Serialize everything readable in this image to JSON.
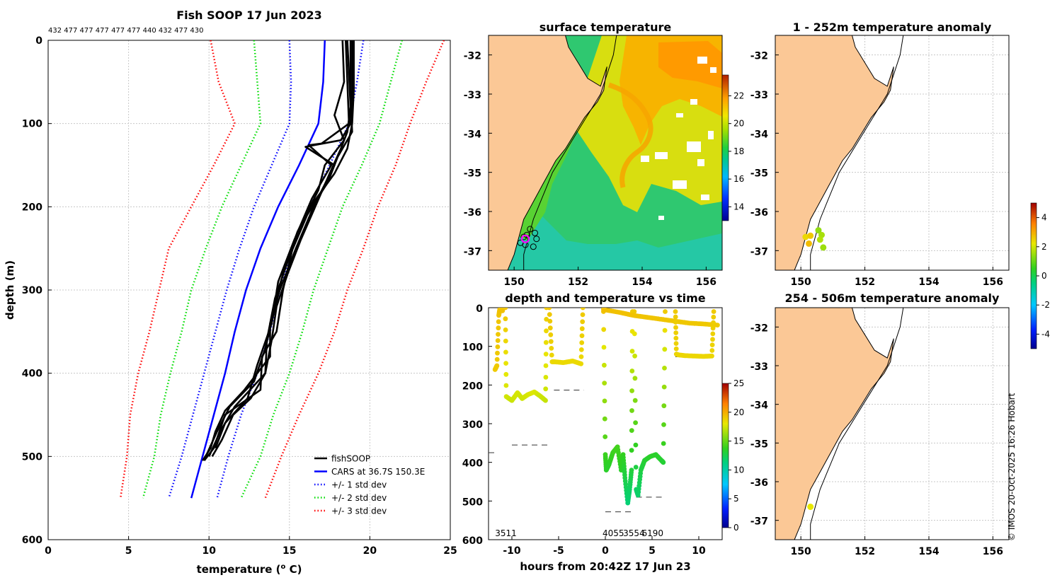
{
  "chart_data": [
    {
      "type": "line",
      "id": "profile",
      "title": "Fish SOOP 17 Jun 2023",
      "drop_ids": "432 477 477 477 477 477 440 432 477 430",
      "xlabel": "temperature (",
      "xlabel_sup": "o",
      "xlabel_tail": " C)",
      "ylabel": "depth (m)",
      "xlim": [
        0,
        25
      ],
      "ylim": [
        600,
        0
      ],
      "xticks": [
        "0",
        "5",
        "10",
        "15",
        "20",
        "25"
      ],
      "yticks": [
        "0",
        "100",
        "200",
        "300",
        "400",
        "500",
        "600"
      ],
      "colors": {
        "fishsoop": "#000000",
        "cars": "#0000ff",
        "std1": "#0000ff",
        "std2": "#00dd00",
        "std3": "#ff0000"
      },
      "legend": [
        {
          "label": "fishSOOP",
          "color": "#000000",
          "style": "solid"
        },
        {
          "label": "CARS at 36.7S 150.3E",
          "color": "#0000ff",
          "style": "solid"
        },
        {
          "label": "+/- 1 std dev",
          "color": "#0000ff",
          "style": "dotted"
        },
        {
          "label": "+/- 2 std dev",
          "color": "#00dd00",
          "style": "dotted"
        },
        {
          "label": "+/- 3 std dev",
          "color": "#ff0000",
          "style": "dotted"
        }
      ],
      "legend_position": "bottom-right",
      "cars_mean": {
        "depth": [
          0,
          50,
          100,
          150,
          200,
          250,
          300,
          350,
          400,
          450,
          500,
          550
        ],
        "temp": [
          17.2,
          17.1,
          16.8,
          15.6,
          14.3,
          13.2,
          12.3,
          11.6,
          11.0,
          10.3,
          9.6,
          8.9
        ]
      },
      "std": [
        {
          "name": "+/-1",
          "lower": [
            15.0,
            15.1,
            15.0,
            13.9,
            12.8,
            11.9,
            11.1,
            10.4,
            9.7,
            9.0,
            8.3,
            7.5
          ],
          "upper": [
            19.6,
            19.2,
            18.7,
            17.5,
            16.2,
            15.2,
            14.4,
            13.8,
            13.0,
            12.0,
            11.2,
            10.5
          ]
        },
        {
          "name": "+/-2",
          "lower": [
            12.8,
            13.0,
            13.2,
            12.0,
            10.8,
            9.8,
            8.9,
            8.3,
            7.6,
            7.0,
            6.6,
            5.9
          ],
          "upper": [
            22.0,
            21.3,
            20.6,
            19.5,
            18.3,
            17.4,
            16.5,
            15.8,
            15.0,
            14.0,
            13.2,
            12.0
          ]
        },
        {
          "name": "+/-3",
          "lower": [
            10.1,
            10.6,
            11.6,
            10.3,
            8.9,
            7.5,
            6.9,
            6.3,
            5.6,
            5.1,
            4.9,
            4.5
          ],
          "upper": [
            24.6,
            23.5,
            22.5,
            21.6,
            20.5,
            19.6,
            18.6,
            17.8,
            16.8,
            15.6,
            14.5,
            13.5
          ]
        }
      ],
      "profiles": [
        {
          "depth": [
            0,
            60,
            100,
            120,
            126,
            128,
            150,
            200,
            250,
            300,
            340,
            380,
            420,
            445,
            470,
            490,
            505
          ],
          "temp": [
            18.9,
            18.9,
            18.8,
            18.2,
            16.5,
            16.0,
            17.8,
            16.5,
            15.4,
            14.4,
            13.8,
            13.8,
            12.2,
            11.0,
            10.4,
            10.1,
            9.6
          ]
        },
        {
          "depth": [
            0,
            40,
            80,
            110,
            130,
            160,
            200,
            240,
            280,
            320,
            360,
            400,
            430,
            450,
            480,
            500
          ],
          "temp": [
            18.6,
            18.7,
            18.8,
            18.6,
            18.2,
            17.5,
            16.6,
            15.7,
            14.9,
            14.2,
            13.9,
            13.5,
            12.6,
            11.5,
            10.8,
            10.2
          ]
        },
        {
          "depth": [
            0,
            50,
            90,
            120,
            150,
            180,
            230,
            280,
            330,
            370,
            410,
            440,
            470,
            500
          ],
          "temp": [
            18.3,
            18.4,
            17.8,
            18.4,
            17.2,
            16.8,
            15.5,
            14.6,
            14.0,
            13.5,
            12.8,
            11.3,
            10.5,
            9.8
          ]
        },
        {
          "depth": [
            0,
            60,
            100,
            130,
            160,
            200,
            250,
            300,
            350,
            380,
            420,
            450,
            490,
            505
          ],
          "temp": [
            19.0,
            19.0,
            18.9,
            18.6,
            17.8,
            16.3,
            15.2,
            14.6,
            14.2,
            13.3,
            13.2,
            11.0,
            10.3,
            9.7
          ]
        },
        {
          "depth": [
            0,
            70,
            110,
            140,
            170,
            210,
            260,
            310,
            360,
            400,
            440,
            470,
            500
          ],
          "temp": [
            18.8,
            18.8,
            18.9,
            18.0,
            17.4,
            16.1,
            15.0,
            14.1,
            13.6,
            13.5,
            11.6,
            10.7,
            10.0
          ]
        },
        {
          "depth": [
            0,
            50,
            100,
            124,
            126,
            150,
            190,
            240,
            290,
            340,
            390,
            430,
            460,
            490
          ],
          "temp": [
            18.5,
            18.6,
            18.7,
            17.0,
            16.2,
            17.6,
            16.4,
            15.3,
            14.3,
            13.9,
            13.0,
            12.4,
            11.0,
            10.4
          ]
        }
      ]
    },
    {
      "type": "heatmap",
      "id": "sst_map",
      "title": "surface temperature",
      "xlim": [
        149.2,
        156.5
      ],
      "ylim": [
        -37.5,
        -31.5
      ],
      "xticks": [
        "150",
        "152",
        "154",
        "156"
      ],
      "yticks": [
        "-32",
        "-33",
        "-34",
        "-35",
        "-36",
        "-37"
      ],
      "colorbar_ticks": [
        "14",
        "16",
        "18",
        "20",
        "22"
      ],
      "colorbar_range": [
        13,
        23.5
      ],
      "land_color": "#fbc896",
      "coast": {
        "lon": [
          151.6,
          151.7,
          152.0,
          152.3,
          152.7,
          152.9,
          152.8,
          152.6,
          152.2,
          151.9,
          151.6,
          151.3,
          151.1,
          150.9,
          150.7,
          150.5,
          150.3,
          150.2,
          150.1,
          150.0,
          149.9,
          149.8
        ],
        "lat": [
          -31.5,
          -31.8,
          -32.2,
          -32.6,
          -32.8,
          -32.3,
          -32.9,
          -33.2,
          -33.6,
          -34.0,
          -34.4,
          -34.7,
          -35.0,
          -35.3,
          -35.6,
          -35.9,
          -36.2,
          -36.5,
          -36.8,
          -37.1,
          -37.3,
          -37.5
        ]
      },
      "isobath": {
        "lon": [
          153.2,
          153.1,
          152.9,
          152.7,
          152.4,
          152.1,
          151.8,
          151.5,
          151.2,
          151.0,
          150.8,
          150.6,
          150.5,
          150.4,
          150.3,
          150.3
        ],
        "lat": [
          -31.5,
          -32.0,
          -32.5,
          -33.0,
          -33.4,
          -33.8,
          -34.2,
          -34.6,
          -35.0,
          -35.4,
          -35.8,
          -36.2,
          -36.5,
          -36.8,
          -37.1,
          -37.5
        ]
      },
      "stations": {
        "lon": [
          150.3,
          150.5,
          150.65,
          150.7,
          150.6,
          150.35,
          150.2,
          150.4
        ],
        "lat": [
          -36.65,
          -36.45,
          -36.55,
          -36.7,
          -36.9,
          -36.85,
          -36.8,
          -36.6
        ]
      },
      "current_station": {
        "lon": 150.35,
        "lat": -36.7
      }
    },
    {
      "type": "scatter",
      "id": "depth_time",
      "title": "depth and temperature vs time",
      "xlabel": "hours from 20:42Z 17 Jun 23",
      "xlim": [
        -12.5,
        12.5
      ],
      "ylim": [
        600,
        0
      ],
      "xticks": [
        "-10",
        "-5",
        "0",
        "5",
        "10"
      ],
      "yticks": [
        "0",
        "100",
        "200",
        "300",
        "400",
        "500",
        "600"
      ],
      "colorbar_ticks": [
        "0",
        "5",
        "10",
        "15",
        "20",
        "25"
      ],
      "colorbar_range": [
        0,
        25
      ],
      "station_labels": [
        {
          "label": "3511",
          "hour": -11.8
        },
        {
          "label": "4055",
          "hour": -0.3
        },
        {
          "label": "3554",
          "hour": 1.9
        },
        {
          "label": "6190",
          "hour": 3.9
        }
      ],
      "bottom_depths": [
        {
          "x": [
            -12.5,
            -11.7
          ],
          "depth": 375
        },
        {
          "x": [
            -10.0,
            -5.8
          ],
          "depth": 355
        },
        {
          "x": [
            -5.5,
            -2.3
          ],
          "depth": 213
        },
        {
          "x": [
            0.0,
            2.8
          ],
          "depth": 528
        },
        {
          "x": [
            3.3,
            6.3
          ],
          "depth": 490
        },
        {
          "x": [
            7.5,
            11.5
          ],
          "depth": 127
        }
      ],
      "tracks": [
        {
          "hour": [
            -11.8,
            -11.6,
            -11.4,
            -11.3,
            -11.2,
            -11.1,
            -11.0
          ],
          "depth": [
            160,
            150,
            20,
            5,
            3,
            5,
            8
          ],
          "temp": [
            19.0,
            19.0,
            19.2,
            19.3,
            19.3,
            19.3,
            19.3
          ]
        },
        {
          "hour": [
            -10.7,
            -10.6,
            -10.0,
            -9.4,
            -8.9,
            -8.3,
            -7.6,
            -7.0,
            -6.4,
            -6.3
          ],
          "depth": [
            0,
            230,
            240,
            220,
            235,
            225,
            218,
            228,
            240,
            0
          ],
          "temp": [
            19.2,
            17.5,
            17.3,
            17.6,
            17.4,
            17.6,
            17.8,
            17.4,
            17.2,
            19.0
          ]
        },
        {
          "hour": [
            -6.0,
            -5.7,
            -5.4,
            -4.5,
            -3.5,
            -2.6,
            -2.4
          ],
          "depth": [
            0,
            140,
            140,
            142,
            138,
            145,
            0
          ],
          "temp": [
            19.2,
            18.6,
            18.5,
            18.5,
            18.5,
            18.5,
            19.1
          ]
        },
        {
          "hour": [
            -0.2,
            0.0,
            0.1,
            0.4,
            0.8,
            1.3,
            1.7,
            1.9,
            2.1,
            2.4,
            2.6,
            2.8,
            2.9
          ],
          "depth": [
            10,
            380,
            420,
            405,
            375,
            360,
            420,
            380,
            440,
            505,
            470,
            420,
            10
          ],
          "temp": [
            19.2,
            14.0,
            13.5,
            13.5,
            14.0,
            14.2,
            13.5,
            13.8,
            12.8,
            11.5,
            12.0,
            13.0,
            19.0
          ]
        },
        {
          "hour": [
            3.1,
            3.3,
            3.5,
            3.8,
            4.2,
            4.8,
            5.4,
            6.0,
            6.2,
            6.4
          ],
          "depth": [
            10,
            470,
            485,
            420,
            395,
            385,
            380,
            395,
            400,
            10
          ],
          "temp": [
            19.0,
            12.0,
            11.8,
            12.8,
            13.2,
            13.5,
            13.5,
            13.3,
            13.2,
            19.0
          ]
        },
        {
          "hour": [
            -0.2,
            1.5,
            3.0,
            4.5,
            6.0,
            7.5,
            9.0,
            10.5,
            12.0
          ],
          "depth": [
            5,
            12,
            20,
            25,
            30,
            35,
            40,
            42,
            45
          ],
          "temp": [
            19.4,
            19.3,
            19.3,
            19.2,
            19.2,
            19.1,
            19.1,
            19.1,
            19.0
          ]
        },
        {
          "hour": [
            7.5,
            7.6,
            7.8,
            8.5,
            9.5,
            10.5,
            11.4,
            11.6
          ],
          "depth": [
            10,
            120,
            122,
            124,
            125,
            126,
            125,
            10
          ],
          "temp": [
            19.0,
            18.7,
            18.6,
            18.6,
            18.6,
            18.6,
            18.6,
            19.0
          ]
        }
      ]
    },
    {
      "type": "scatter",
      "id": "anom_shallow",
      "title": "1 - 252m temperature anomaly",
      "xlim": [
        149.2,
        156.5
      ],
      "ylim": [
        -37.5,
        -31.5
      ],
      "xticks": [
        "150",
        "152",
        "154",
        "156"
      ],
      "yticks": [
        "-32",
        "-33",
        "-34",
        "-35",
        "-36",
        "-37"
      ],
      "colorbar_ticks": [
        "-4",
        "-2",
        "0",
        "2",
        "4"
      ],
      "colorbar_range": [
        -5,
        5
      ],
      "points": {
        "lon": [
          150.15,
          150.3,
          150.25,
          150.55,
          150.65,
          150.6,
          150.7
        ],
        "lat": [
          -36.65,
          -36.62,
          -36.82,
          -36.48,
          -36.6,
          -36.72,
          -36.92
        ],
        "anom": [
          2.4,
          2.6,
          2.8,
          1.4,
          1.6,
          1.7,
          1.5
        ]
      }
    },
    {
      "type": "scatter",
      "id": "anom_deep",
      "title": "254 - 506m temperature anomaly",
      "xlim": [
        149.2,
        156.5
      ],
      "ylim": [
        -37.5,
        -31.5
      ],
      "xticks": [
        "150",
        "152",
        "154",
        "156"
      ],
      "yticks": [
        "-32",
        "-33",
        "-34",
        "-35",
        "-36",
        "-37"
      ],
      "points": {
        "lon": [
          150.3
        ],
        "lat": [
          -36.65
        ],
        "anom": [
          2.2
        ]
      }
    }
  ],
  "credit": "© IMOS 20-Oct-2025 16:26 Hobart"
}
